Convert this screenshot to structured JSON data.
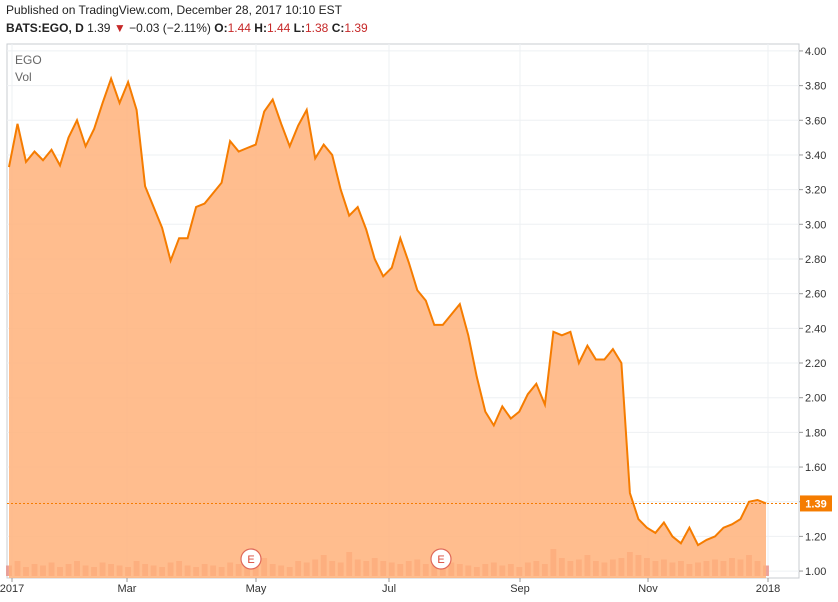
{
  "header": {
    "published": "Published on TradingView.com, December 28, 2017 10:10 EST",
    "symbol": "BATS:EGO, D",
    "last": "1.39",
    "arrow": "▼",
    "change": "−0.03 (−2.11%)",
    "o_label": "O:",
    "o_value": "1.44",
    "h_label": "H:",
    "h_value": "1.44",
    "l_label": "L:",
    "l_value": "1.38",
    "c_label": "C:",
    "c_value": "1.39"
  },
  "legend": {
    "symbol": "EGO",
    "volume": "Vol"
  },
  "earnings_marker": "E",
  "colors": {
    "line": "#f57c00",
    "area": "#ffb27a",
    "volume": "#e8857a",
    "volume_ma": "#f5a070",
    "last_badge": "#f57c00"
  },
  "chart_data": {
    "type": "area",
    "ylim": [
      0.96,
      4.04
    ],
    "y_ticks": [
      "4.00",
      "3.80",
      "3.60",
      "3.40",
      "3.20",
      "3.00",
      "2.80",
      "2.60",
      "2.40",
      "2.20",
      "2.00",
      "1.80",
      "1.60",
      "1.40",
      "1.20",
      "1.00"
    ],
    "x_ticks": [
      "2017",
      "Mar",
      "May",
      "Jul",
      "Sep",
      "Nov",
      "2018"
    ],
    "last_value_label": "1.39",
    "last_value": 1.39,
    "price_series": [
      3.33,
      3.58,
      3.36,
      3.42,
      3.37,
      3.43,
      3.34,
      3.5,
      3.6,
      3.45,
      3.55,
      3.7,
      3.84,
      3.7,
      3.82,
      3.66,
      3.22,
      3.1,
      2.98,
      2.79,
      2.92,
      2.92,
      3.1,
      3.12,
      3.18,
      3.24,
      3.48,
      3.42,
      3.44,
      3.46,
      3.65,
      3.72,
      3.58,
      3.45,
      3.57,
      3.66,
      3.38,
      3.46,
      3.4,
      3.2,
      3.05,
      3.1,
      2.97,
      2.8,
      2.7,
      2.75,
      2.92,
      2.78,
      2.62,
      2.56,
      2.42,
      2.42,
      2.48,
      2.54,
      2.36,
      2.12,
      1.92,
      1.84,
      1.95,
      1.88,
      1.92,
      2.02,
      2.08,
      1.96,
      2.38,
      2.36,
      2.38,
      2.2,
      2.3,
      2.22,
      2.22,
      2.28,
      2.2,
      1.45,
      1.3,
      1.25,
      1.22,
      1.28,
      1.2,
      1.16,
      1.25,
      1.15,
      1.18,
      1.2,
      1.25,
      1.27,
      1.3,
      1.4,
      1.41,
      1.39
    ],
    "volume_series": [
      0.35,
      0.5,
      0.3,
      0.4,
      0.35,
      0.45,
      0.3,
      0.4,
      0.5,
      0.35,
      0.3,
      0.45,
      0.4,
      0.35,
      0.3,
      0.5,
      0.4,
      0.35,
      0.3,
      0.45,
      0.5,
      0.35,
      0.3,
      0.4,
      0.35,
      0.3,
      0.45,
      0.4,
      0.35,
      0.5,
      0.6,
      0.4,
      0.35,
      0.3,
      0.5,
      0.45,
      0.55,
      0.7,
      0.5,
      0.45,
      0.8,
      0.55,
      0.5,
      0.6,
      0.5,
      0.45,
      0.4,
      0.5,
      0.55,
      0.4,
      0.35,
      0.5,
      0.45,
      0.4,
      0.35,
      0.3,
      0.4,
      0.45,
      0.35,
      0.4,
      0.3,
      0.45,
      0.5,
      0.4,
      0.9,
      0.6,
      0.5,
      0.55,
      0.7,
      0.5,
      0.45,
      0.55,
      0.6,
      0.8,
      0.7,
      0.6,
      0.5,
      0.55,
      0.45,
      0.5,
      0.4,
      0.45,
      0.5,
      0.55,
      0.5,
      0.6,
      0.55,
      0.7,
      0.5,
      0.35
    ]
  }
}
